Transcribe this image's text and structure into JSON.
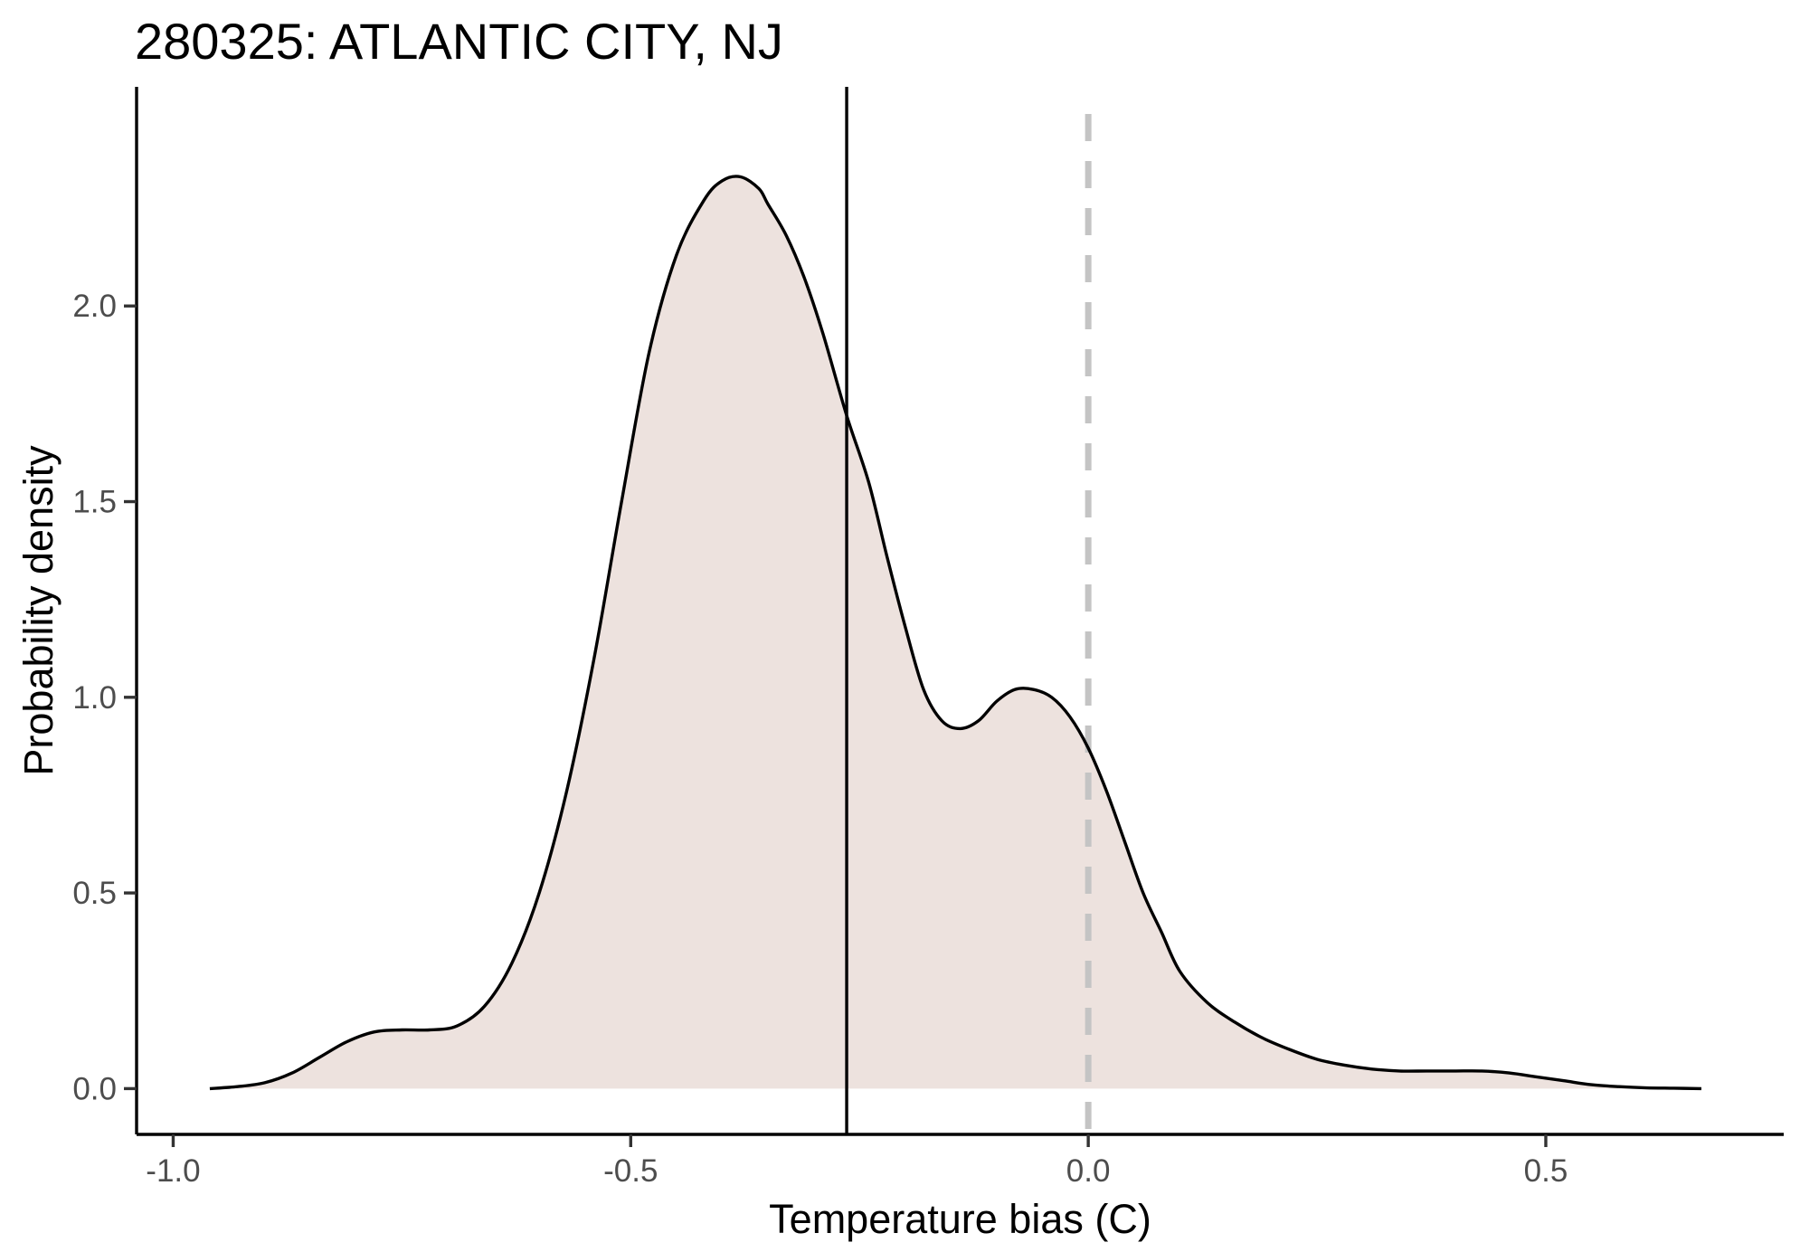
{
  "chart_data": {
    "type": "area",
    "title": "280325: ATLANTIC CITY, NJ",
    "xlabel": "Temperature bias (C)",
    "ylabel": "Probability density",
    "xlim": [
      -1.04,
      0.76
    ],
    "ylim": [
      -0.117,
      2.56
    ],
    "x_ticks": [
      -1.0,
      -0.5,
      0.0,
      0.5
    ],
    "x_tick_labels": [
      "-1.0",
      "-0.5",
      "0.0",
      "0.5"
    ],
    "y_ticks": [
      0.0,
      0.5,
      1.0,
      1.5,
      2.0
    ],
    "y_tick_labels": [
      "0.0",
      "0.5",
      "1.0",
      "1.5",
      "2.0"
    ],
    "grid": false,
    "fill_color": "#ede2de",
    "line_color": "#000000",
    "reference_lines": [
      {
        "x": -0.264,
        "style": "solid",
        "color": "#000000"
      },
      {
        "x": 0.0,
        "style": "dashed",
        "color": "#c4c4c4"
      }
    ],
    "density": {
      "x": [
        -0.96,
        -0.93,
        -0.9,
        -0.87,
        -0.84,
        -0.81,
        -0.78,
        -0.75,
        -0.72,
        -0.69,
        -0.66,
        -0.63,
        -0.6,
        -0.57,
        -0.54,
        -0.51,
        -0.48,
        -0.45,
        -0.42,
        -0.4,
        -0.38,
        -0.36,
        -0.35,
        -0.33,
        -0.31,
        -0.29,
        -0.264,
        -0.24,
        -0.22,
        -0.2,
        -0.18,
        -0.16,
        -0.14,
        -0.12,
        -0.1,
        -0.08,
        -0.06,
        -0.04,
        -0.02,
        0.0,
        0.02,
        0.04,
        0.06,
        0.08,
        0.1,
        0.13,
        0.16,
        0.19,
        0.22,
        0.25,
        0.28,
        0.31,
        0.34,
        0.37,
        0.4,
        0.43,
        0.46,
        0.49,
        0.52,
        0.55,
        0.58,
        0.61,
        0.64,
        0.67
      ],
      "y": [
        0.0,
        0.005,
        0.015,
        0.04,
        0.08,
        0.12,
        0.145,
        0.15,
        0.15,
        0.16,
        0.21,
        0.32,
        0.5,
        0.76,
        1.1,
        1.5,
        1.88,
        2.13,
        2.27,
        2.32,
        2.33,
        2.3,
        2.26,
        2.18,
        2.07,
        1.93,
        1.72,
        1.55,
        1.36,
        1.18,
        1.02,
        0.94,
        0.92,
        0.94,
        0.99,
        1.02,
        1.02,
        1.0,
        0.95,
        0.87,
        0.76,
        0.63,
        0.5,
        0.4,
        0.3,
        0.22,
        0.17,
        0.13,
        0.1,
        0.075,
        0.06,
        0.05,
        0.045,
        0.045,
        0.045,
        0.045,
        0.04,
        0.03,
        0.02,
        0.01,
        0.005,
        0.002,
        0.001,
        0.0
      ]
    }
  }
}
